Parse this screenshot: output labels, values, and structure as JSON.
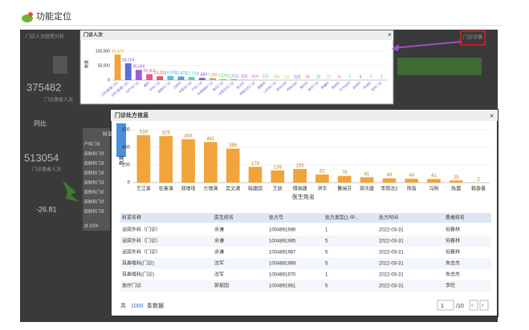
{
  "header": {
    "title": "功能定位"
  },
  "dashboard": {
    "panel_title": "门诊人次趋势分析",
    "link": "门诊详情",
    "metric_1": "375482",
    "metric_1_label": "门诊患者人次",
    "tab": "同比",
    "metric_2": "513054",
    "metric_2_label": "门诊患者人次",
    "change": "-26.81",
    "side_header": "科室",
    "side_rows": [
      "产科门诊",
      "皮肤科门诊",
      "皮肤科门诊",
      "皮肤科门诊",
      "皮肤科门诊",
      "皮肤科门诊",
      "皮肤科门诊",
      "皮肤科门诊"
    ],
    "side_footer": "共 1000"
  },
  "chart_data": [
    {
      "type": "bar",
      "title": "门诊人次",
      "y_label": "数量",
      "categories": [
        "儿科(普通门诊)",
        "内科(普通门诊)",
        "妇产科门诊",
        "眼科",
        "外科门诊",
        "皮肤科门诊",
        "口腔科",
        "中医科门诊",
        "产科门诊",
        "耳鼻喉科门诊",
        "骨科门诊",
        "泌尿外科门诊",
        "急诊科",
        "神经内科门诊",
        "康复科",
        "心内科门诊",
        "消化内科",
        "呼吸内科",
        "肾内科",
        "放疗门诊",
        "肿瘤科",
        "感染科",
        "内分泌科",
        "血液科",
        "风湿科",
        "发热门诊"
      ],
      "values": [
        88829,
        58164,
        35366,
        20463,
        13202,
        14549,
        12472,
        10703,
        7684,
        7086,
        3195,
        2512,
        925,
        414,
        292,
        194,
        141,
        113,
        46,
        29,
        22,
        6,
        5,
        4,
        4,
        1
      ],
      "value_labels": [
        "88,829",
        "58,164",
        "35,366",
        "20,463",
        "13,202",
        "14,549",
        "12,472",
        "10,703",
        "7,684",
        "7,086",
        "3,195",
        "2,512",
        "925",
        "414",
        "292",
        "194",
        "141",
        "113",
        "46",
        "29",
        "22",
        "6",
        "5",
        "4",
        "4",
        "1"
      ],
      "colors": [
        "#f0a43a",
        "#5b6fd6",
        "#a45bd6",
        "#e05a8a",
        "#d65b5b",
        "#5bc0d6",
        "#5b9bd5",
        "#5bd6a0",
        "#7a5bd6",
        "#d6a45b",
        "#5bd65b",
        "#5b8bd6",
        "#c05bd6",
        "#d65ba8",
        "#5bd6d6",
        "#8bd65b",
        "#d6d65b",
        "#5b5bd6",
        "#d6805b",
        "#6fa0d6",
        "#a0d65b",
        "#d65b80",
        "#5bd6b8",
        "#b85bd6",
        "#d6b85b",
        "#5ba8d6"
      ],
      "ylim": [
        0,
        100000
      ],
      "yticks": [
        0,
        {
          "value": 50000,
          "label": "50,000"
        },
        {
          "value": 100000,
          "label": "100,000"
        }
      ]
    },
    {
      "type": "bar",
      "title": "门诊处方信息",
      "x_label": "医生姓名",
      "y_label": "数量",
      "categories": [
        "王江第",
        "张喜清",
        "郑增瑶",
        "方增清",
        "吴文通",
        "程建国",
        "王跃",
        "傅钢建",
        "洪华",
        "曹闽芬",
        "郑沃建",
        "李雨洁2",
        "邢蓓",
        "冯明",
        "陈晨",
        "赖泰善"
      ],
      "values": [
        539,
        529,
        493,
        461,
        386,
        179,
        139,
        155,
        92,
        76,
        61,
        49,
        44,
        41,
        25,
        2
      ],
      "color": "#f0a43a",
      "ylim": [
        0,
        600
      ],
      "yticks": [
        0,
        200,
        400,
        600
      ]
    }
  ],
  "table": {
    "headers": [
      "科室名称",
      "医生姓名",
      "处方号",
      "处方类型(1:中...",
      "处方时间",
      "患者姓名"
    ],
    "rows": [
      [
        "泌尿外科（门诊）",
        "余谦",
        "1004891986",
        "1",
        "2022-03-31",
        "何春林"
      ],
      [
        "泌尿外科（门诊）",
        "余谦",
        "1004891985",
        "5",
        "2022-03-31",
        "何春林"
      ],
      [
        "泌尿外科（门诊）",
        "余谦",
        "1004891987",
        "5",
        "2022-03-31",
        "何春林"
      ],
      [
        "耳鼻喉科(门诊)",
        "沈军",
        "1004891969",
        "5",
        "2022-03-31",
        "朱忠杰"
      ],
      [
        "耳鼻喉科(门诊)",
        "沈军",
        "1004891970",
        "1",
        "2022-03-31",
        "朱忠杰"
      ],
      [
        "放疗门诊",
        "郭振国",
        "1004891961",
        "5",
        "2022-03-31",
        "李旺"
      ]
    ],
    "footer_prefix": "共",
    "total": "1000",
    "footer_suffix": "条数据",
    "page": "1",
    "pages": "/10"
  }
}
